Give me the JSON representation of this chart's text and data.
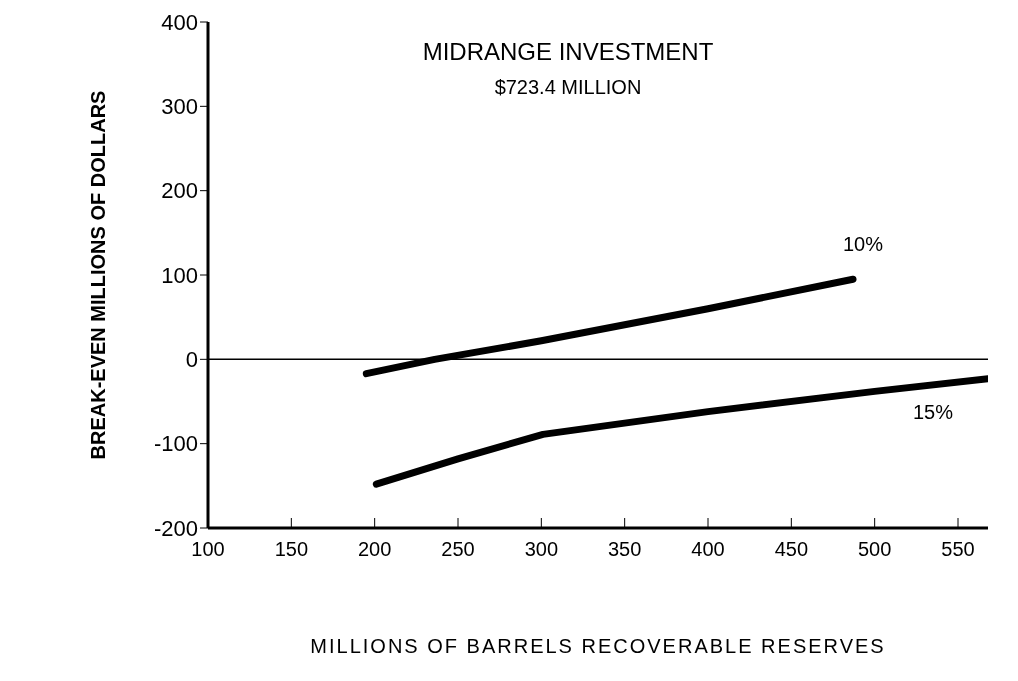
{
  "chart_data": {
    "type": "line",
    "title": "MIDRANGE INVESTMENT",
    "subtitle": "$723.4 MILLION",
    "xlabel": "MILLIONS OF BARRELS RECOVERABLE RESERVES",
    "ylabel": "BREAK-EVEN MILLIONS OF DOLLARS",
    "series": [
      {
        "name": "10%",
        "color": "#000000",
        "x": [
          195,
          236,
          300,
          400,
          487
        ],
        "values": [
          -17,
          0,
          22,
          60,
          95
        ]
      },
      {
        "name": "15%",
        "color": "#000000",
        "x": [
          201,
          250,
          301,
          400,
          500,
          568
        ],
        "values": [
          -148,
          -118,
          -89,
          -62,
          -38,
          -23
        ]
      }
    ],
    "xlim": [
      100,
      568
    ],
    "xticks": [
      100,
      150,
      200,
      250,
      300,
      350,
      400,
      450,
      500,
      550
    ],
    "ylim": [
      -200,
      400
    ],
    "yticks": [
      -200,
      -100,
      0,
      100,
      200,
      300,
      400
    ],
    "ref_lines": [
      {
        "axis": "y",
        "value": 0,
        "color": "#000000"
      }
    ],
    "grid": false,
    "legend": false,
    "marker": "none",
    "line_style": "solid"
  }
}
